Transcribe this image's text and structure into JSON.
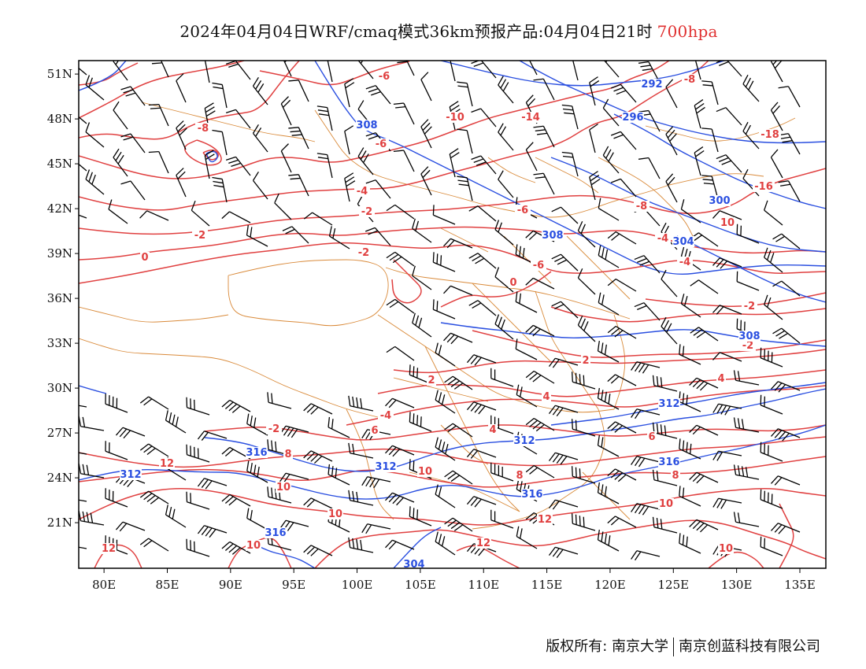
{
  "title": {
    "main": "2024年04月04日WRF/cmaq模式36km预报产品:04月04日21时",
    "level": "700hpa",
    "level_color": "#e03030"
  },
  "axes": {
    "lat_labels": [
      "51N",
      "48N",
      "45N",
      "42N",
      "39N",
      "36N",
      "33N",
      "30N",
      "27N",
      "24N",
      "21N"
    ],
    "lon_labels": [
      "80E",
      "85E",
      "90E",
      "95E",
      "100E",
      "105E",
      "110E",
      "115E",
      "120E",
      "125E",
      "130E",
      "135E"
    ]
  },
  "colors": {
    "temperature": "#e04040",
    "height": "#2a4fe0",
    "border": "#d98a3a",
    "barb": "#000000",
    "frame": "#000000"
  },
  "temperature_labels": [
    "-8",
    "-6",
    "-10",
    "-14",
    "-8",
    "-6",
    "-18",
    "-4",
    "-16",
    "-2",
    "-6",
    "-8",
    "-2",
    "-4",
    "10",
    "-6",
    "0",
    "-4",
    "0",
    "-2",
    "-2",
    "-2",
    "2",
    "2",
    "4",
    "-4",
    "4",
    "-2",
    "4",
    "6",
    "6",
    "12",
    "8",
    "8",
    "10",
    "10",
    "10",
    "12",
    "10",
    "10",
    "12",
    "10",
    "12",
    "8"
  ],
  "height_labels": [
    "292",
    "296",
    "308",
    "300",
    "308",
    "304",
    "308",
    "312",
    "312",
    "316",
    "312",
    "316",
    "312",
    "316",
    "316",
    "304"
  ],
  "footer": {
    "left": "版权所有: 南京大学",
    "right": "南京创蓝科技有限公司"
  }
}
